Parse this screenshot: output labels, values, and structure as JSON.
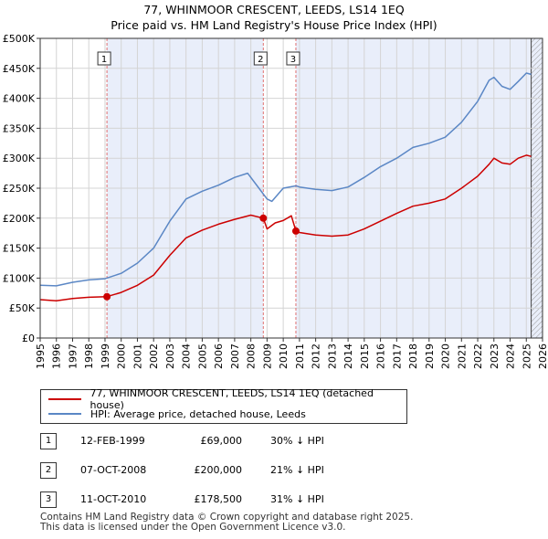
{
  "title": "77, WHINMOOR CRESCENT, LEEDS, LS14 1EQ",
  "subtitle": "Price paid vs. HM Land Registry's House Price Index (HPI)",
  "chart_data": {
    "type": "line",
    "title": "77, WHINMOOR CRESCENT, LEEDS, LS14 1EQ",
    "xlabel": "",
    "ylabel": "",
    "xlim": [
      1995,
      2026
    ],
    "ylim": [
      0,
      500000
    ],
    "x_ticks": [
      "1995",
      "1996",
      "1997",
      "1998",
      "1999",
      "2000",
      "2001",
      "2002",
      "2003",
      "2004",
      "2005",
      "2006",
      "2007",
      "2008",
      "2009",
      "2010",
      "2011",
      "2012",
      "2013",
      "2014",
      "2015",
      "2016",
      "2017",
      "2018",
      "2019",
      "2020",
      "2021",
      "2022",
      "2023",
      "2024",
      "2025",
      "2026"
    ],
    "y_ticks": [
      {
        "value": 0,
        "label": "£0"
      },
      {
        "value": 50000,
        "label": "£50K"
      },
      {
        "value": 100000,
        "label": "£100K"
      },
      {
        "value": 150000,
        "label": "£150K"
      },
      {
        "value": 200000,
        "label": "£200K"
      },
      {
        "value": 250000,
        "label": "£250K"
      },
      {
        "value": 300000,
        "label": "£300K"
      },
      {
        "value": 350000,
        "label": "£350K"
      },
      {
        "value": 400000,
        "label": "£400K"
      },
      {
        "value": 450000,
        "label": "£450K"
      },
      {
        "value": 500000,
        "label": "£500K"
      }
    ],
    "grid": true,
    "shaded_ranges": [
      [
        1999.12,
        2008.77
      ],
      [
        2010.78,
        2026
      ]
    ],
    "hatched_from": 2025.3,
    "series": [
      {
        "name": "77, WHINMOOR CRESCENT, LEEDS, LS14 1EQ (detached house)",
        "color": "#cc0000",
        "x": [
          1995,
          1996,
          1997,
          1998,
          1999.12,
          2000,
          2001,
          2002,
          2003,
          2004,
          2005,
          2006,
          2007,
          2008,
          2008.77,
          2009,
          2009.5,
          2010,
          2010.5,
          2010.78,
          2011,
          2012,
          2013,
          2014,
          2015,
          2016,
          2017,
          2018,
          2019,
          2020,
          2021,
          2022,
          2022.7,
          2023,
          2023.5,
          2024,
          2024.5,
          2025,
          2025.3
        ],
        "values": [
          64000,
          62000,
          66000,
          68000,
          69000,
          76000,
          88000,
          105000,
          138000,
          167000,
          180000,
          190000,
          198000,
          205000,
          200000,
          182000,
          192000,
          196000,
          204000,
          178500,
          176000,
          172000,
          170000,
          172000,
          182000,
          195000,
          208000,
          220000,
          225000,
          232000,
          250000,
          270000,
          290000,
          300000,
          292000,
          290000,
          300000,
          305000,
          303000
        ]
      },
      {
        "name": "HPI: Average price, detached house, Leeds",
        "color": "#5b87c5",
        "x": [
          1995,
          1996,
          1997,
          1998,
          1999,
          2000,
          2001,
          2002,
          2003,
          2004,
          2005,
          2006,
          2007,
          2007.8,
          2008.5,
          2009,
          2009.3,
          2010,
          2010.8,
          2011,
          2012,
          2013,
          2014,
          2015,
          2016,
          2017,
          2018,
          2019,
          2020,
          2021,
          2022,
          2022.7,
          2023,
          2023.5,
          2024,
          2024.5,
          2025,
          2025.3
        ],
        "values": [
          88000,
          87000,
          93000,
          97000,
          99000,
          108000,
          125000,
          150000,
          195000,
          232000,
          245000,
          255000,
          268000,
          275000,
          250000,
          232000,
          228000,
          250000,
          254000,
          252000,
          248000,
          246000,
          252000,
          268000,
          286000,
          300000,
          318000,
          325000,
          335000,
          360000,
          395000,
          430000,
          435000,
          420000,
          415000,
          428000,
          442000,
          440000
        ]
      }
    ],
    "markers": [
      {
        "label": "1",
        "x": 1999.12,
        "y": 69000
      },
      {
        "label": "2",
        "x": 2008.77,
        "y": 200000
      },
      {
        "label": "3",
        "x": 2010.78,
        "y": 178500
      }
    ]
  },
  "legend": [
    {
      "label": "77, WHINMOOR CRESCENT, LEEDS, LS14 1EQ (detached house)",
      "color": "#cc0000"
    },
    {
      "label": "HPI: Average price, detached house, Leeds",
      "color": "#5b87c5"
    }
  ],
  "events": [
    {
      "num": "1",
      "date": "12-FEB-1999",
      "price": "£69,000",
      "hpi": "30% ↓ HPI"
    },
    {
      "num": "2",
      "date": "07-OCT-2008",
      "price": "£200,000",
      "hpi": "21% ↓ HPI"
    },
    {
      "num": "3",
      "date": "11-OCT-2010",
      "price": "£178,500",
      "hpi": "31% ↓ HPI"
    }
  ],
  "footer": {
    "line1": "Contains HM Land Registry data © Crown copyright and database right 2025.",
    "line2": "This data is licensed under the Open Government Licence v3.0."
  }
}
